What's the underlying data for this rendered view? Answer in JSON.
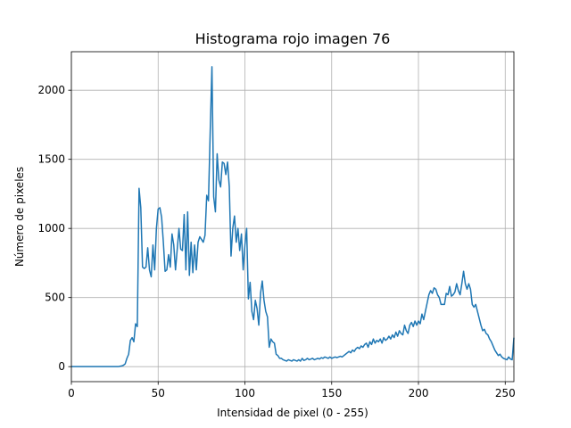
{
  "chart_data": {
    "type": "line",
    "title": "Histograma rojo imagen 76",
    "xlabel": "Intensidad de pixel (0 - 255)",
    "ylabel": "Número de pixeles",
    "x": [
      0,
      1,
      2,
      3,
      4,
      5,
      6,
      7,
      8,
      9,
      10,
      11,
      12,
      13,
      14,
      15,
      16,
      17,
      18,
      19,
      20,
      21,
      22,
      23,
      24,
      25,
      26,
      27,
      28,
      29,
      30,
      31,
      32,
      33,
      34,
      35,
      36,
      37,
      38,
      39,
      40,
      41,
      42,
      43,
      44,
      45,
      46,
      47,
      48,
      49,
      50,
      51,
      52,
      53,
      54,
      55,
      56,
      57,
      58,
      59,
      60,
      61,
      62,
      63,
      64,
      65,
      66,
      67,
      68,
      69,
      70,
      71,
      72,
      73,
      74,
      75,
      76,
      77,
      78,
      79,
      80,
      81,
      82,
      83,
      84,
      85,
      86,
      87,
      88,
      89,
      90,
      91,
      92,
      93,
      94,
      95,
      96,
      97,
      98,
      99,
      100,
      101,
      102,
      103,
      104,
      105,
      106,
      107,
      108,
      109,
      110,
      111,
      112,
      113,
      114,
      115,
      116,
      117,
      118,
      119,
      120,
      121,
      122,
      123,
      124,
      125,
      126,
      127,
      128,
      129,
      130,
      131,
      132,
      133,
      134,
      135,
      136,
      137,
      138,
      139,
      140,
      141,
      142,
      143,
      144,
      145,
      146,
      147,
      148,
      149,
      150,
      151,
      152,
      153,
      154,
      155,
      156,
      157,
      158,
      159,
      160,
      161,
      162,
      163,
      164,
      165,
      166,
      167,
      168,
      169,
      170,
      171,
      172,
      173,
      174,
      175,
      176,
      177,
      178,
      179,
      180,
      181,
      182,
      183,
      184,
      185,
      186,
      187,
      188,
      189,
      190,
      191,
      192,
      193,
      194,
      195,
      196,
      197,
      198,
      199,
      200,
      201,
      202,
      203,
      204,
      205,
      206,
      207,
      208,
      209,
      210,
      211,
      212,
      213,
      214,
      215,
      216,
      217,
      218,
      219,
      220,
      221,
      222,
      223,
      224,
      225,
      226,
      227,
      228,
      229,
      230,
      231,
      232,
      233,
      234,
      235,
      236,
      237,
      238,
      239,
      240,
      241,
      242,
      243,
      244,
      245,
      246,
      247,
      248,
      249,
      250,
      251,
      252,
      253,
      254,
      255
    ],
    "series": [
      {
        "name": "rojo",
        "color": "#1f77b4",
        "values": [
          0,
          0,
          0,
          0,
          0,
          0,
          0,
          0,
          0,
          0,
          0,
          0,
          0,
          0,
          0,
          0,
          0,
          0,
          0,
          0,
          0,
          0,
          0,
          0,
          0,
          0,
          0,
          0,
          3,
          5,
          10,
          20,
          60,
          90,
          190,
          210,
          180,
          310,
          290,
          1290,
          1150,
          720,
          710,
          720,
          860,
          700,
          650,
          880,
          700,
          1000,
          1140,
          1150,
          1080,
          900,
          690,
          700,
          810,
          720,
          960,
          880,
          700,
          850,
          1000,
          850,
          840,
          1100,
          700,
          1120,
          660,
          900,
          680,
          880,
          700,
          900,
          940,
          920,
          900,
          950,
          1240,
          1200,
          1700,
          2170,
          1230,
          1120,
          1540,
          1350,
          1300,
          1480,
          1470,
          1390,
          1480,
          1300,
          800,
          1000,
          1090,
          900,
          1000,
          840,
          960,
          700,
          880,
          1000,
          490,
          610,
          400,
          340,
          480,
          420,
          300,
          530,
          620,
          480,
          400,
          360,
          140,
          200,
          180,
          170,
          90,
          80,
          60,
          60,
          50,
          45,
          40,
          50,
          45,
          40,
          50,
          45,
          40,
          50,
          40,
          60,
          45,
          50,
          60,
          50,
          55,
          60,
          50,
          55,
          60,
          55,
          65,
          60,
          70,
          65,
          60,
          70,
          60,
          65,
          70,
          65,
          70,
          75,
          70,
          80,
          90,
          100,
          110,
          100,
          120,
          110,
          130,
          140,
          130,
          150,
          140,
          160,
          170,
          140,
          180,
          160,
          200,
          170,
          190,
          180,
          200,
          170,
          210,
          190,
          200,
          220,
          200,
          230,
          210,
          250,
          220,
          260,
          240,
          230,
          300,
          260,
          240,
          300,
          320,
          290,
          330,
          300,
          330,
          310,
          380,
          340,
          400,
          460,
          520,
          550,
          530,
          570,
          560,
          520,
          500,
          450,
          450,
          450,
          530,
          520,
          580,
          510,
          520,
          540,
          600,
          550,
          520,
          600,
          690,
          600,
          560,
          600,
          560,
          450,
          430,
          450,
          400,
          350,
          300,
          260,
          270,
          240,
          230,
          200,
          180,
          150,
          120,
          100,
          80,
          90,
          70,
          60,
          55,
          50,
          70,
          55,
          50,
          210
        ]
      }
    ],
    "xlim": [
      0,
      255
    ],
    "ylim": [
      -108.5,
      2278.5
    ],
    "xticks": [
      0,
      50,
      100,
      150,
      200,
      250
    ],
    "yticks": [
      0,
      500,
      1000,
      1500,
      2000
    ],
    "grid": true
  }
}
